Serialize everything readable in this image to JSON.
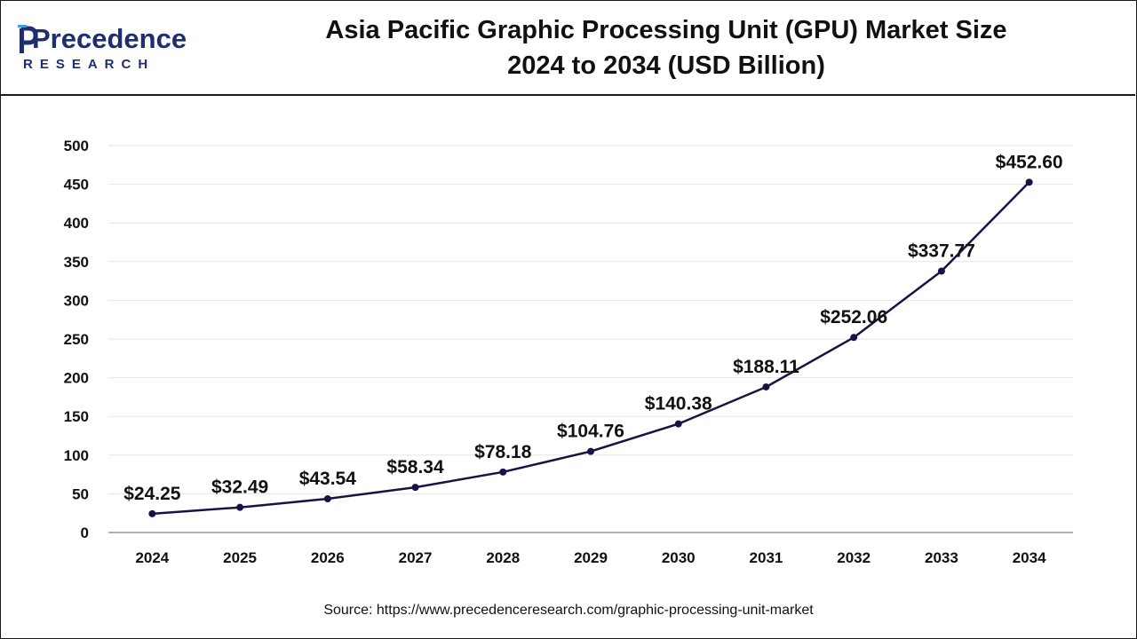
{
  "brand": {
    "name": "Precedence",
    "tagline": "RESEARCH",
    "color": "#1f2f6e"
  },
  "chart_data": {
    "type": "line",
    "title": "Asia Pacific Graphic Processing Unit (GPU) Market Size",
    "subtitle": "2024 to 2034 (USD Billion)",
    "xlabel": "",
    "ylabel": "",
    "categories": [
      "2024",
      "2025",
      "2026",
      "2027",
      "2028",
      "2029",
      "2030",
      "2031",
      "2032",
      "2033",
      "2034"
    ],
    "values": [
      24.25,
      32.49,
      43.54,
      58.34,
      78.18,
      104.76,
      140.38,
      188.11,
      252.06,
      337.77,
      452.6
    ],
    "data_labels": [
      "$24.25",
      "$32.49",
      "$43.54",
      "$58.34",
      "$78.18",
      "$104.76",
      "$140.38",
      "$188.11",
      "$252.06",
      "$337.77",
      "$452.60"
    ],
    "ylim": [
      0,
      500
    ],
    "yticks": [
      0,
      50,
      100,
      150,
      200,
      250,
      300,
      350,
      400,
      450,
      500
    ],
    "grid": true,
    "line_color": "#141546"
  },
  "source": "Source: https://www.precedenceresearch.com/graphic-processing-unit-market"
}
